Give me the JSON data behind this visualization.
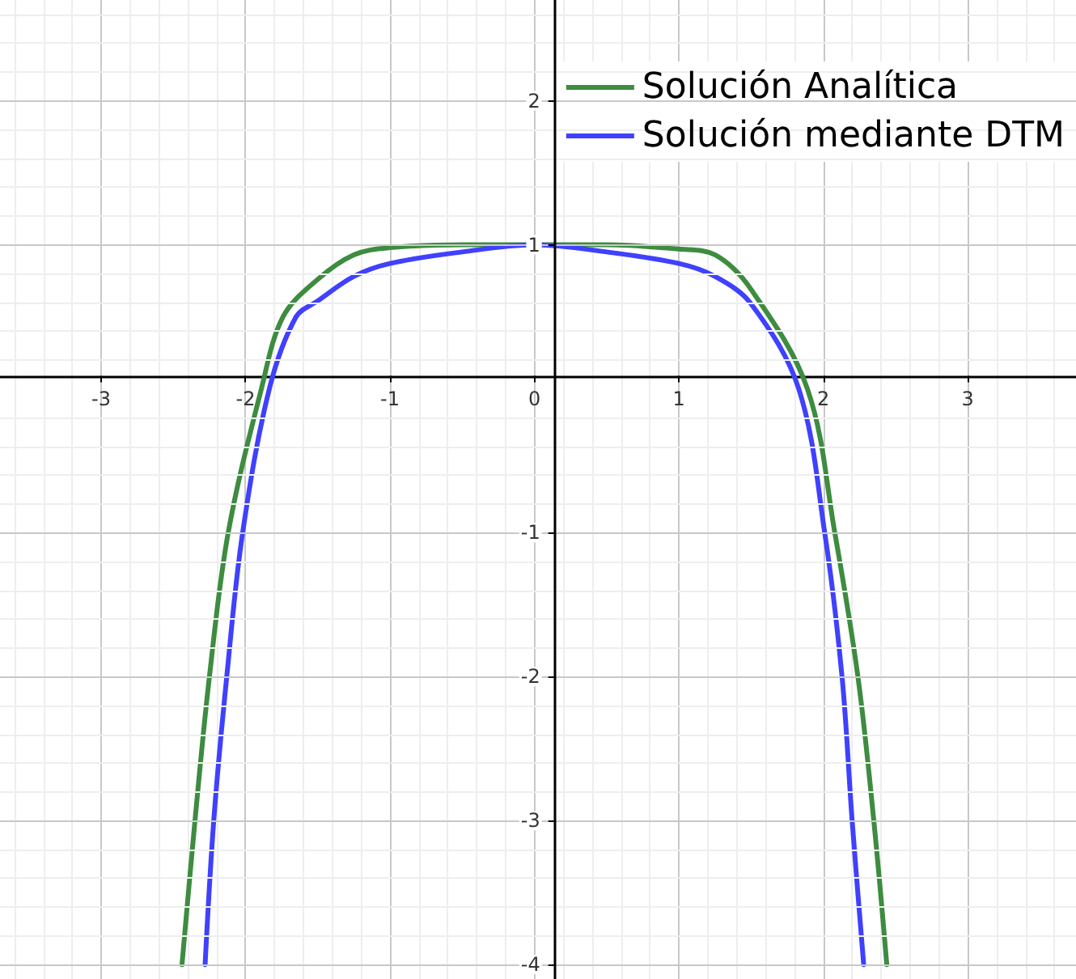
{
  "chart_data": {
    "type": "line",
    "xlim": [
      -3.7,
      3.75
    ],
    "ylim": [
      -4.1,
      2.7
    ],
    "xticks": [
      -3,
      -2,
      -1,
      0,
      1,
      2,
      3
    ],
    "yticks": [
      -4,
      -3,
      -2,
      -1,
      1,
      2
    ],
    "grid": true,
    "legend": "top right",
    "marker": "none",
    "line_style": "solid",
    "series": [
      {
        "name": "Solución Analítica",
        "color": "#3d8c40",
        "x": [
          -2.44,
          -2.35,
          -2.25,
          -2.12,
          -1.89,
          -1.74,
          -1.5,
          -1.25,
          -1,
          -0.5,
          0,
          0.5,
          1,
          1.25,
          1.5,
          1.89,
          2.08,
          2.24,
          2.35,
          2.44
        ],
        "values": [
          -4,
          -3,
          -2,
          -1,
          0,
          0.5,
          0.76,
          0.93,
          0.98,
          1,
          1,
          1,
          0.97,
          0.93,
          0.69,
          0,
          -1,
          -2,
          -3,
          -4
        ]
      },
      {
        "name": "Solución mediante DTM",
        "color": "#4040ff",
        "x": [
          -2.28,
          -2.22,
          -2.13,
          -2.02,
          -1.835,
          -1.65,
          -1.5,
          -1.25,
          -1,
          -0.5,
          0,
          0.5,
          1,
          1.25,
          1.5,
          1.83,
          2.01,
          2.13,
          2.2,
          2.28
        ],
        "values": [
          -4,
          -3,
          -2,
          -1,
          0,
          0.5,
          0.61,
          0.78,
          0.87,
          0.95,
          1,
          0.95,
          0.87,
          0.78,
          0.59,
          0,
          -1,
          -2,
          -3,
          -4
        ]
      }
    ]
  }
}
